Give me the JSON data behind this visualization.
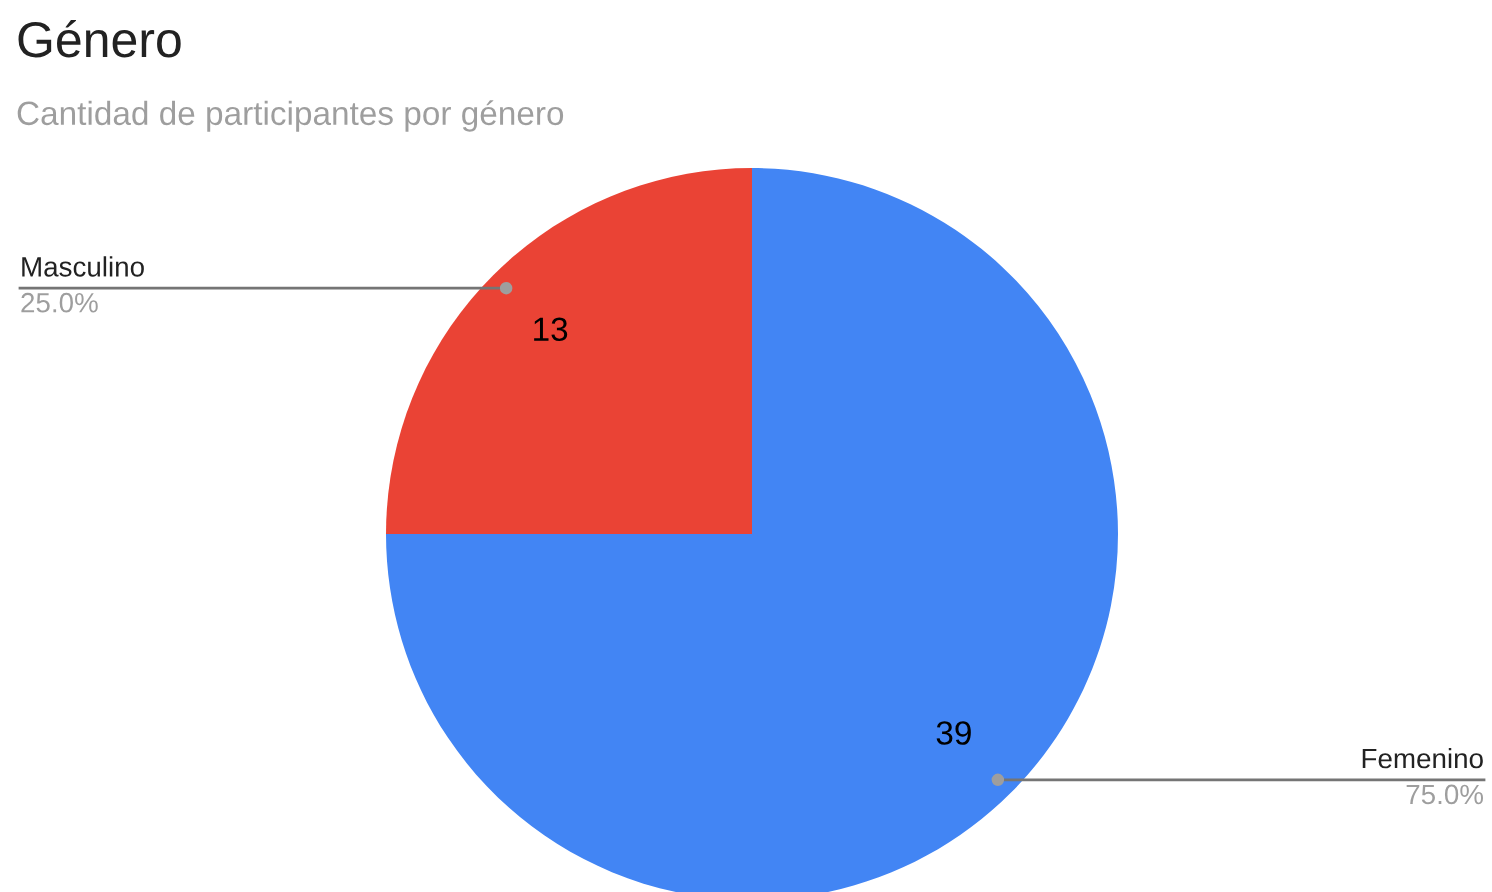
{
  "chart_data": {
    "type": "pie",
    "title": "Género",
    "subtitle": "Cantidad de participantes por género",
    "categories": [
      "Masculino",
      "Femenino"
    ],
    "values": [
      13,
      39
    ],
    "colors": [
      "#ea4335",
      "#4285f4"
    ],
    "data_labels": true,
    "annotations": [
      "25.0%",
      "75.0%"
    ],
    "legend": false
  }
}
